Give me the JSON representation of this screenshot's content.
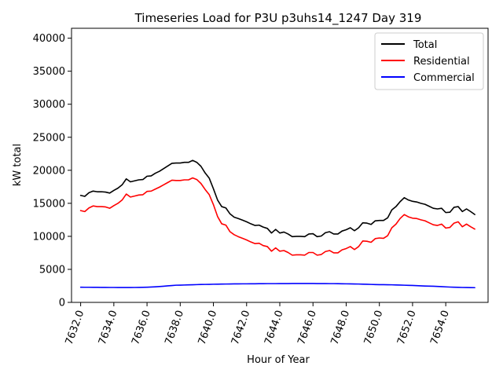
{
  "chart_data": {
    "type": "line",
    "title": "Timeseries Load for P3U p3uhs14_1247  Day 319",
    "xlabel": "Hour of Year",
    "ylabel": "kW total",
    "xlim": [
      7631.45,
      7656.55
    ],
    "ylim": [
      0,
      41500
    ],
    "x_ticks": [
      7632.0,
      7634.0,
      7636.0,
      7638.0,
      7640.0,
      7642.0,
      7644.0,
      7646.0,
      7648.0,
      7650.0,
      7652.0,
      7654.0
    ],
    "x_tick_labels": [
      "7632.0",
      "7634.0",
      "7636.0",
      "7638.0",
      "7640.0",
      "7642.0",
      "7644.0",
      "7646.0",
      "7648.0",
      "7650.0",
      "7652.0",
      "7654.0"
    ],
    "y_ticks": [
      0,
      5000,
      10000,
      15000,
      20000,
      25000,
      30000,
      35000,
      40000
    ],
    "y_tick_labels": [
      "0",
      "5000",
      "10000",
      "15000",
      "20000",
      "25000",
      "30000",
      "35000",
      "40000"
    ],
    "legend_position": "top-right",
    "x_start": 7632.0,
    "x_step": 0.25,
    "series": [
      {
        "name": "Total",
        "color": "#000000",
        "values": [
          16200,
          16050,
          16600,
          16850,
          16750,
          16750,
          16700,
          16550,
          16950,
          17300,
          17800,
          18700,
          18250,
          18400,
          18550,
          18600,
          19100,
          19150,
          19550,
          19850,
          20250,
          20650,
          21050,
          21100,
          21100,
          21200,
          21200,
          21500,
          21200,
          20600,
          19600,
          18800,
          17200,
          15500,
          14500,
          14300,
          13400,
          12900,
          12700,
          12450,
          12200,
          11900,
          11650,
          11700,
          11400,
          11200,
          10500,
          11050,
          10500,
          10650,
          10350,
          9950,
          10000,
          10000,
          9950,
          10350,
          10400,
          9950,
          10050,
          10550,
          10700,
          10350,
          10350,
          10800,
          11000,
          11300,
          10850,
          11300,
          12050,
          12000,
          11800,
          12350,
          12400,
          12400,
          12800,
          14000,
          14500,
          15250,
          15850,
          15500,
          15300,
          15200,
          15000,
          14850,
          14550,
          14250,
          14150,
          14250,
          13600,
          13650,
          14400,
          14500,
          13750,
          14150,
          13750,
          13300
        ]
      },
      {
        "name": "Residential",
        "color": "#ff0000",
        "values": [
          13900,
          13750,
          14300,
          14600,
          14500,
          14500,
          14450,
          14250,
          14650,
          15000,
          15500,
          16400,
          15950,
          16100,
          16250,
          16300,
          16800,
          16850,
          17150,
          17450,
          17800,
          18150,
          18500,
          18450,
          18450,
          18550,
          18550,
          18850,
          18600,
          18000,
          17100,
          16300,
          14800,
          13000,
          11900,
          11700,
          10700,
          10250,
          9950,
          9700,
          9450,
          9150,
          8900,
          8950,
          8600,
          8450,
          7750,
          8250,
          7750,
          7850,
          7550,
          7150,
          7200,
          7200,
          7150,
          7550,
          7550,
          7150,
          7250,
          7700,
          7850,
          7500,
          7500,
          7950,
          8150,
          8450,
          8000,
          8450,
          9300,
          9250,
          9100,
          9650,
          9750,
          9700,
          10100,
          11300,
          11850,
          12700,
          13300,
          12950,
          12750,
          12700,
          12500,
          12350,
          12050,
          11750,
          11650,
          11850,
          11250,
          11350,
          12000,
          12200,
          11450,
          11850,
          11450,
          11100
        ]
      },
      {
        "name": "Commercial",
        "color": "#0000ff",
        "values": [
          2300,
          2290,
          2290,
          2280,
          2280,
          2270,
          2270,
          2260,
          2260,
          2250,
          2250,
          2250,
          2250,
          2260,
          2270,
          2280,
          2300,
          2330,
          2360,
          2400,
          2450,
          2500,
          2550,
          2600,
          2610,
          2630,
          2650,
          2670,
          2690,
          2710,
          2720,
          2730,
          2750,
          2760,
          2770,
          2780,
          2790,
          2800,
          2800,
          2810,
          2810,
          2820,
          2820,
          2830,
          2830,
          2840,
          2840,
          2840,
          2850,
          2850,
          2850,
          2860,
          2860,
          2860,
          2860,
          2860,
          2860,
          2850,
          2850,
          2850,
          2840,
          2840,
          2830,
          2820,
          2810,
          2800,
          2790,
          2780,
          2760,
          2740,
          2720,
          2700,
          2680,
          2680,
          2670,
          2660,
          2640,
          2620,
          2600,
          2580,
          2560,
          2540,
          2510,
          2480,
          2460,
          2440,
          2420,
          2390,
          2350,
          2320,
          2300,
          2280,
          2260,
          2250,
          2240,
          2230
        ]
      }
    ]
  }
}
